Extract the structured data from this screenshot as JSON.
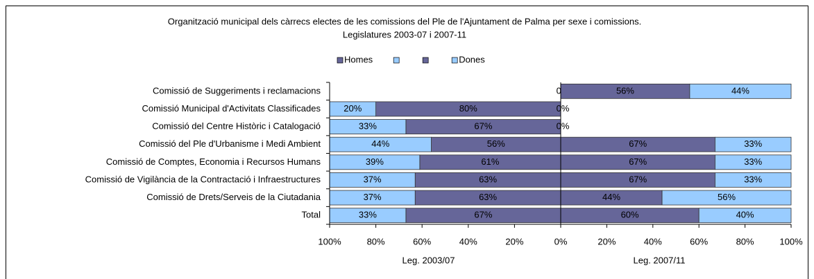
{
  "chart_data": {
    "type": "bar",
    "orientation": "horizontal",
    "stacked": true,
    "title": "Organització municipal dels càrrecs electes de les comissions del Ple de l'Ajuntament de Palma per sexe i comissions.",
    "subtitle": "Legislatures 2003-07 i 2007-11",
    "categories": [
      "Comissió de Suggeriments i reclamacions",
      "Comissió Municipal d'Activitats Classificades",
      "Comissió del Centre Històric i Catalogació",
      "Comissió del Ple d'Urbanisme i Medi Ambient",
      "Comissió de Comptes, Economia i Recursos Humans",
      "Comissió de Vigilància de la Contractació i Infraestructures",
      "Comissió de Drets/Serveis de la Ciutadania",
      "Total"
    ],
    "legend": "top",
    "panels": [
      {
        "x_label": "Leg. 2003/07",
        "xlim": [
          100,
          0
        ],
        "xticks": [
          {
            "value": 100,
            "label": "100%"
          },
          {
            "value": 80,
            "label": "80%"
          },
          {
            "value": 60,
            "label": "60%"
          },
          {
            "value": 40,
            "label": "40%"
          },
          {
            "value": 20,
            "label": "20%"
          },
          {
            "value": 0,
            "label": "0%"
          }
        ],
        "series": [
          {
            "name": "Homes",
            "color": "#666699",
            "values": [
              0,
              80,
              67,
              56,
              61,
              63,
              63,
              67
            ],
            "value_labels": [
              "0%",
              "80%",
              "67%",
              "56%",
              "61%",
              "63%",
              "63%",
              "67%"
            ]
          },
          {
            "name": null,
            "color": "#99ccff",
            "values": [
              null,
              20,
              33,
              44,
              39,
              37,
              37,
              33
            ],
            "value_labels": [
              null,
              "20%",
              "33%",
              "44%",
              "39%",
              "37%",
              "37%",
              "33%"
            ]
          }
        ]
      },
      {
        "x_label": "Leg. 2007/11",
        "xlim": [
          0,
          100
        ],
        "xticks": [
          {
            "value": 0,
            "label": "0%"
          },
          {
            "value": 20,
            "label": "20%"
          },
          {
            "value": 40,
            "label": "40%"
          },
          {
            "value": 60,
            "label": "60%"
          },
          {
            "value": 80,
            "label": "80%"
          },
          {
            "value": 100,
            "label": "100%"
          }
        ],
        "series": [
          {
            "name": null,
            "color": "#666699",
            "values": [
              56,
              0,
              0,
              67,
              67,
              67,
              44,
              60
            ],
            "value_labels": [
              "56%",
              "0%",
              "0%",
              "67%",
              "67%",
              "67%",
              "44%",
              "60%"
            ]
          },
          {
            "name": "Dones",
            "color": "#99ccff",
            "values": [
              44,
              null,
              null,
              33,
              33,
              33,
              56,
              40
            ],
            "value_labels": [
              "44%",
              null,
              null,
              "33%",
              "33%",
              "33%",
              "56%",
              "40%"
            ]
          }
        ]
      }
    ]
  }
}
